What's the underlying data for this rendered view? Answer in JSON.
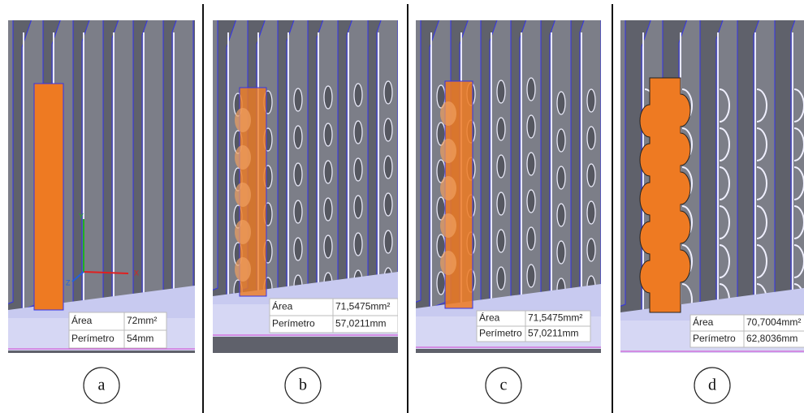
{
  "panels": [
    {
      "label": "a",
      "axes": [
        "X",
        "Y",
        "Z"
      ],
      "measurements": [
        {
          "name": "Área",
          "value": "72mm²"
        },
        {
          "name": "Perímetro",
          "value": "54mm"
        }
      ]
    },
    {
      "label": "b",
      "measurements": [
        {
          "name": "Área",
          "value": "71,5475mm²"
        },
        {
          "name": "Perímetro",
          "value": "57,0211mm"
        }
      ]
    },
    {
      "label": "c",
      "measurements": [
        {
          "name": "Área",
          "value": "71,5475mm²"
        },
        {
          "name": "Perímetro",
          "value": "57,0211mm"
        }
      ]
    },
    {
      "label": "d",
      "measurements": [
        {
          "name": "Área",
          "value": "70,7004mm²"
        },
        {
          "name": "Perímetro",
          "value": "62,8036mm"
        }
      ]
    }
  ]
}
